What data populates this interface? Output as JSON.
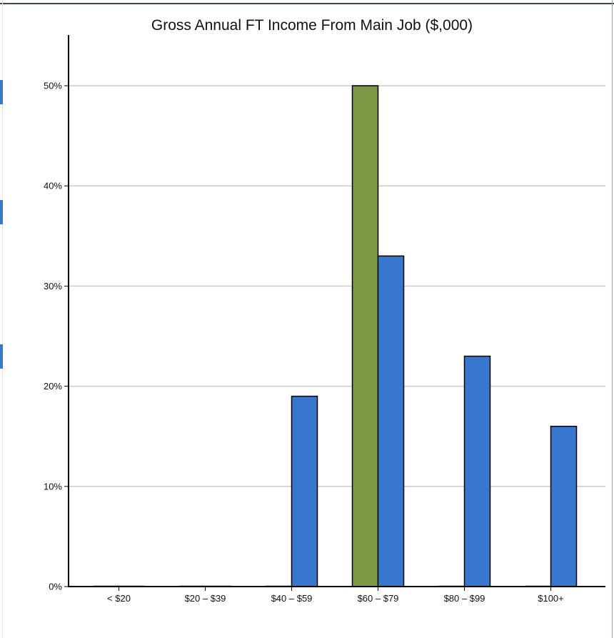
{
  "chart_data": {
    "type": "bar",
    "title": "Gross Annual FT Income From Main Job ($,000)",
    "xlabel": "",
    "ylabel": "",
    "categories": [
      "< $20",
      "$20 – $39",
      "$40 – $59",
      "$60 – $79",
      "$80 – $99",
      "$100+"
    ],
    "series": [
      {
        "values": [
          0,
          0,
          0,
          50,
          0,
          0
        ],
        "color": "#7b9944"
      },
      {
        "values": [
          0,
          0,
          19,
          33,
          23,
          16
        ],
        "color": "#3778ce"
      }
    ],
    "ylim": [
      0,
      50
    ],
    "yticks": [
      0,
      10,
      20,
      30,
      40,
      50
    ],
    "ytick_labels": [
      "0%",
      "10%",
      "20%",
      "30%",
      "40%",
      "50%"
    ],
    "grid": true,
    "legend": "none"
  },
  "colors": {
    "gridline": "#cccccc",
    "axis": "#000000",
    "bar_outline": "#000000",
    "accent_mark": "#3778ce"
  }
}
